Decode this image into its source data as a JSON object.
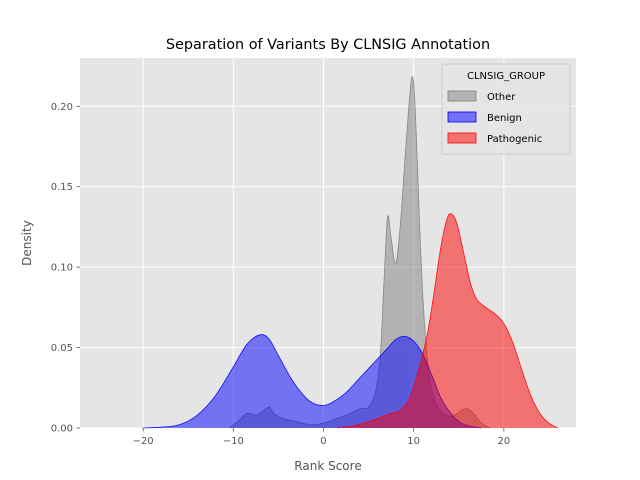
{
  "chart_data": {
    "type": "area",
    "title": "Separation of Variants By CLNSIG Annotation",
    "xlabel": "Rank Score",
    "ylabel": "Density",
    "xlim": [
      -27,
      28
    ],
    "ylim": [
      0,
      0.23
    ],
    "xticks": [
      -20,
      -10,
      0,
      10,
      20
    ],
    "yticks": [
      0.0,
      0.05,
      0.1,
      0.15,
      0.2
    ],
    "xtick_labels": [
      "−20",
      "−10",
      "0",
      "10",
      "20"
    ],
    "ytick_labels": [
      "0.00",
      "0.05",
      "0.10",
      "0.15",
      "0.20"
    ],
    "grid": true,
    "background": "#e5e5e5",
    "legend": {
      "title": "CLNSIG_GROUP",
      "position": "top-right"
    },
    "series": [
      {
        "name": "Other",
        "color": "#808080",
        "points": [
          [
            -10.5,
            0
          ],
          [
            -9.5,
            0.004
          ],
          [
            -8.5,
            0.009
          ],
          [
            -7.5,
            0.008
          ],
          [
            -6.8,
            0.01
          ],
          [
            -6,
            0.013
          ],
          [
            -5.5,
            0.009
          ],
          [
            -4.5,
            0.006
          ],
          [
            -3,
            0.004
          ],
          [
            -1.5,
            0.002
          ],
          [
            0,
            0.003
          ],
          [
            1.5,
            0.006
          ],
          [
            3,
            0.009
          ],
          [
            4,
            0.012
          ],
          [
            5,
            0.013
          ],
          [
            5.8,
            0.023
          ],
          [
            6.3,
            0.045
          ],
          [
            6.7,
            0.09
          ],
          [
            7.1,
            0.131
          ],
          [
            7.5,
            0.118
          ],
          [
            8,
            0.102
          ],
          [
            8.5,
            0.125
          ],
          [
            9.2,
            0.18
          ],
          [
            9.8,
            0.218
          ],
          [
            10.2,
            0.195
          ],
          [
            10.7,
            0.12
          ],
          [
            11.2,
            0.065
          ],
          [
            11.8,
            0.03
          ],
          [
            12.5,
            0.015
          ],
          [
            13.5,
            0.008
          ],
          [
            14.5,
            0.008
          ],
          [
            15.3,
            0.011
          ],
          [
            16,
            0.012
          ],
          [
            16.8,
            0.008
          ],
          [
            17.5,
            0.003
          ],
          [
            18.5,
            0
          ]
        ]
      },
      {
        "name": "Benign",
        "color": "#0000ff",
        "points": [
          [
            -20,
            0
          ],
          [
            -18,
            0.0005
          ],
          [
            -16,
            0.002
          ],
          [
            -14,
            0.008
          ],
          [
            -12,
            0.02
          ],
          [
            -10,
            0.038
          ],
          [
            -8.5,
            0.052
          ],
          [
            -7,
            0.058
          ],
          [
            -6,
            0.055
          ],
          [
            -5,
            0.045
          ],
          [
            -3.5,
            0.03
          ],
          [
            -2,
            0.019
          ],
          [
            -1,
            0.015
          ],
          [
            0,
            0.014
          ],
          [
            1,
            0.016
          ],
          [
            2.5,
            0.022
          ],
          [
            4,
            0.031
          ],
          [
            5.5,
            0.04
          ],
          [
            7,
            0.049
          ],
          [
            8,
            0.055
          ],
          [
            9,
            0.057
          ],
          [
            10,
            0.054
          ],
          [
            11,
            0.046
          ],
          [
            12,
            0.033
          ],
          [
            13,
            0.019
          ],
          [
            14,
            0.01
          ],
          [
            15,
            0.004
          ],
          [
            16,
            0.0015
          ],
          [
            17.5,
            0
          ]
        ]
      },
      {
        "name": "Pathogenic",
        "color": "#ff0000",
        "points": [
          [
            1.5,
            0
          ],
          [
            3,
            0.001
          ],
          [
            4.5,
            0.003
          ],
          [
            6,
            0.006
          ],
          [
            7.5,
            0.009
          ],
          [
            8.5,
            0.011
          ],
          [
            9.5,
            0.018
          ],
          [
            10.5,
            0.035
          ],
          [
            11.5,
            0.058
          ],
          [
            12.2,
            0.082
          ],
          [
            13,
            0.112
          ],
          [
            13.7,
            0.13
          ],
          [
            14.2,
            0.133
          ],
          [
            14.8,
            0.127
          ],
          [
            15.5,
            0.11
          ],
          [
            16.3,
            0.09
          ],
          [
            17,
            0.08
          ],
          [
            18,
            0.075
          ],
          [
            19,
            0.071
          ],
          [
            20,
            0.065
          ],
          [
            21,
            0.053
          ],
          [
            22,
            0.036
          ],
          [
            23,
            0.02
          ],
          [
            24,
            0.009
          ],
          [
            25,
            0.003
          ],
          [
            26,
            0
          ]
        ]
      }
    ]
  }
}
